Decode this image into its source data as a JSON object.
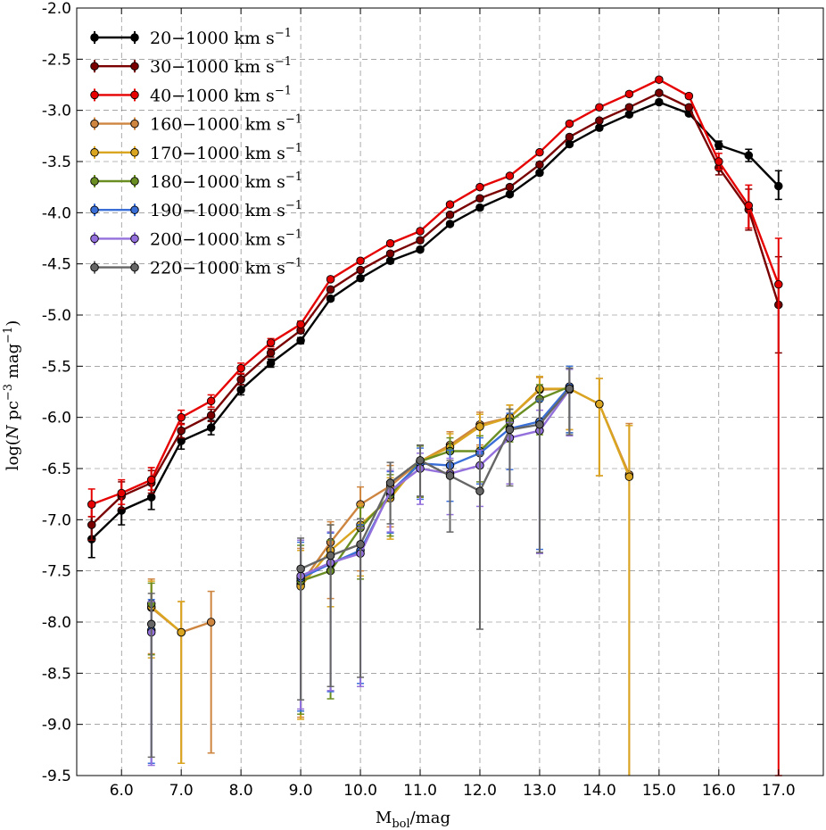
{
  "chart_data": {
    "type": "line",
    "title": "",
    "xlabel": {
      "main": "M",
      "sub": "bol",
      "rest": "/mag"
    },
    "ylabel": {
      "pre": "log(",
      "N": "N",
      "mid": " pc",
      "sup1": "−3",
      "mid2": " mag",
      "sup2": "−1",
      "post": ")"
    },
    "xlim": [
      5.25,
      17.75
    ],
    "ylim": [
      -9.5,
      -2.0
    ],
    "xticks": [
      6.0,
      7.0,
      8.0,
      9.0,
      10.0,
      11.0,
      12.0,
      13.0,
      14.0,
      15.0,
      16.0,
      17.0
    ],
    "yticks": [
      -2.0,
      -2.5,
      -3.0,
      -3.5,
      -4.0,
      -4.5,
      -5.0,
      -5.5,
      -6.0,
      -6.5,
      -7.0,
      -7.5,
      -8.0,
      -8.5,
      -9.0,
      -9.5
    ],
    "grid": true,
    "legend_position": "top-left",
    "legend_unit": {
      "base": " km s",
      "sup": "−1"
    },
    "series": [
      {
        "name": "20−1000",
        "color": "#000000",
        "points": [
          [
            5.5,
            -7.19,
            0.22,
            0.18
          ],
          [
            6.0,
            -6.91,
            0.16,
            0.14
          ],
          [
            6.5,
            -6.78,
            0.14,
            0.12
          ],
          [
            7.0,
            -6.23,
            0.08,
            0.08
          ],
          [
            7.5,
            -6.1,
            0.07,
            0.07
          ],
          [
            8.0,
            -5.73,
            0.05,
            0.05
          ],
          [
            8.5,
            -5.47,
            0.04,
            0.04
          ],
          [
            9.0,
            -5.25,
            0.03,
            0.03
          ],
          [
            9.5,
            -4.84,
            0.02,
            0.02
          ],
          [
            10.0,
            -4.64,
            0.02,
            0.02
          ],
          [
            10.5,
            -4.47,
            0.02,
            0.02
          ],
          [
            11.0,
            -4.36,
            0.02,
            0.02
          ],
          [
            11.5,
            -4.11,
            0.02,
            0.02
          ],
          [
            12.0,
            -3.95,
            0.02,
            0.02
          ],
          [
            12.5,
            -3.82,
            0.02,
            0.02
          ],
          [
            13.0,
            -3.61,
            0.02,
            0.02
          ],
          [
            13.5,
            -3.33,
            0.02,
            0.02
          ],
          [
            14.0,
            -3.17,
            0.02,
            0.02
          ],
          [
            14.5,
            -3.04,
            0.02,
            0.02
          ],
          [
            15.0,
            -2.92,
            0.02,
            0.02
          ],
          [
            15.5,
            -3.03,
            0.02,
            0.02
          ],
          [
            16.0,
            -3.34,
            0.04,
            0.04
          ],
          [
            16.5,
            -3.44,
            0.06,
            0.06
          ],
          [
            17.0,
            -3.74,
            0.15,
            0.13
          ]
        ]
      },
      {
        "name": "30−1000",
        "color": "#7a0000",
        "points": [
          [
            5.5,
            -7.05,
            0.18,
            0.15
          ],
          [
            6.0,
            -6.77,
            0.14,
            0.12
          ],
          [
            6.5,
            -6.64,
            0.12,
            0.1
          ],
          [
            7.0,
            -6.13,
            0.07,
            0.07
          ],
          [
            7.5,
            -5.98,
            0.06,
            0.06
          ],
          [
            8.0,
            -5.63,
            0.05,
            0.05
          ],
          [
            8.5,
            -5.37,
            0.04,
            0.04
          ],
          [
            9.0,
            -5.15,
            0.03,
            0.03
          ],
          [
            9.5,
            -4.75,
            0.02,
            0.02
          ],
          [
            10.0,
            -4.56,
            0.02,
            0.02
          ],
          [
            10.5,
            -4.4,
            0.02,
            0.02
          ],
          [
            11.0,
            -4.27,
            0.02,
            0.02
          ],
          [
            11.5,
            -4.02,
            0.02,
            0.02
          ],
          [
            12.0,
            -3.86,
            0.02,
            0.02
          ],
          [
            12.5,
            -3.75,
            0.02,
            0.02
          ],
          [
            13.0,
            -3.53,
            0.02,
            0.02
          ],
          [
            13.5,
            -3.26,
            0.02,
            0.02
          ],
          [
            14.0,
            -3.1,
            0.02,
            0.02
          ],
          [
            14.5,
            -2.97,
            0.02,
            0.02
          ],
          [
            15.0,
            -2.83,
            0.02,
            0.02
          ],
          [
            15.5,
            -2.97,
            0.02,
            0.02
          ],
          [
            16.0,
            -3.56,
            0.07,
            0.07
          ],
          [
            16.5,
            -3.97,
            0.2,
            0.2
          ],
          [
            17.0,
            -4.9,
            0.47,
            0.47
          ]
        ]
      },
      {
        "name": "40−1000",
        "color": "#e60000",
        "points": [
          [
            5.5,
            -6.85,
            0.15,
            0.12
          ],
          [
            6.0,
            -6.74,
            0.13,
            0.11
          ],
          [
            6.5,
            -6.61,
            0.12,
            0.1
          ],
          [
            7.0,
            -6.0,
            0.07,
            0.07
          ],
          [
            7.5,
            -5.84,
            0.06,
            0.06
          ],
          [
            8.0,
            -5.52,
            0.05,
            0.05
          ],
          [
            8.5,
            -5.27,
            0.04,
            0.04
          ],
          [
            9.0,
            -5.09,
            0.03,
            0.03
          ],
          [
            9.5,
            -4.65,
            0.02,
            0.02
          ],
          [
            10.0,
            -4.47,
            0.02,
            0.02
          ],
          [
            10.5,
            -4.3,
            0.02,
            0.02
          ],
          [
            11.0,
            -4.18,
            0.02,
            0.02
          ],
          [
            11.5,
            -3.92,
            0.02,
            0.02
          ],
          [
            12.0,
            -3.75,
            0.02,
            0.02
          ],
          [
            12.5,
            -3.64,
            0.02,
            0.02
          ],
          [
            13.0,
            -3.41,
            0.02,
            0.02
          ],
          [
            13.5,
            -3.13,
            0.02,
            0.02
          ],
          [
            14.0,
            -2.97,
            0.02,
            0.02
          ],
          [
            14.5,
            -2.84,
            0.02,
            0.02
          ],
          [
            15.0,
            -2.7,
            0.02,
            0.02
          ],
          [
            15.5,
            -2.86,
            0.02,
            0.02
          ],
          [
            16.0,
            -3.5,
            0.08,
            0.08
          ],
          [
            16.5,
            -3.93,
            0.2,
            0.22
          ],
          [
            17.0,
            -4.7,
            0.45,
            4.8
          ]
        ]
      },
      {
        "name": "160−1000",
        "color": "#cd853f",
        "points": [
          [
            6.5,
            -7.86,
            0.28,
            0.45
          ],
          [
            7.0,
            -8.1,
            0.3,
            1.28
          ],
          [
            7.5,
            -8.0,
            0.3,
            1.28
          ],
          null,
          [
            9.0,
            -7.63,
            0.35,
            1.3
          ],
          [
            9.5,
            -7.22,
            0.2,
            0.55
          ],
          [
            10.0,
            -6.85,
            0.17,
            0.65
          ],
          [
            10.5,
            -6.67,
            0.2,
            0.4
          ],
          [
            11.0,
            -6.43,
            0.15,
            0.35
          ],
          [
            11.5,
            -6.27,
            0.13,
            0.25
          ],
          [
            12.0,
            -6.07,
            0.12,
            0.2
          ],
          [
            12.5,
            -6.0,
            0.12,
            0.18
          ],
          [
            13.0,
            -5.73,
            0.12,
            0.3
          ],
          [
            13.5,
            -5.72,
            0.2,
            0.4
          ],
          [
            14.0,
            -5.87,
            0.25,
            0.7
          ],
          [
            14.5,
            -6.56,
            0.5,
            3.5
          ]
        ]
      },
      {
        "name": "170−1000",
        "color": "#daa520",
        "points": [
          [
            6.5,
            -7.85,
            0.25,
            0.5
          ],
          [
            7.0,
            -8.1,
            0.3,
            1.28
          ],
          null,
          [
            9.0,
            -7.65,
            0.35,
            1.3
          ],
          [
            9.5,
            -7.3,
            0.25,
            0.55
          ],
          [
            10.0,
            -7.05,
            0.2,
            0.5
          ],
          [
            10.5,
            -6.79,
            0.2,
            0.4
          ],
          [
            11.0,
            -6.43,
            0.15,
            0.35
          ],
          [
            11.5,
            -6.29,
            0.13,
            0.25
          ],
          [
            12.0,
            -6.09,
            0.12,
            0.2
          ],
          [
            12.5,
            -6.0,
            0.12,
            0.18
          ],
          [
            13.0,
            -5.72,
            0.12,
            0.3
          ],
          [
            13.5,
            -5.72,
            0.2,
            0.4
          ],
          [
            14.0,
            -5.87,
            0.25,
            0.7
          ],
          [
            14.5,
            -6.58,
            0.5,
            3.5
          ]
        ]
      },
      {
        "name": "180−1000",
        "color": "#6b8e23",
        "points": [
          [
            6.5,
            -7.82,
            0.2,
            0.5
          ],
          null,
          [
            9.0,
            -7.6,
            0.35,
            1.3
          ],
          [
            9.5,
            -7.5,
            0.3,
            1.25
          ],
          [
            10.0,
            -7.08,
            0.2,
            0.5
          ],
          [
            10.5,
            -6.76,
            0.2,
            0.4
          ],
          [
            11.0,
            -6.43,
            0.15,
            0.35
          ],
          [
            11.5,
            -6.33,
            0.13,
            0.25
          ],
          [
            12.0,
            -6.33,
            0.15,
            0.3
          ],
          [
            12.5,
            -6.04,
            0.12,
            0.2
          ],
          [
            13.0,
            -5.82,
            0.14,
            0.35
          ],
          [
            13.5,
            -5.7,
            0.2,
            0.45
          ]
        ]
      },
      {
        "name": "190−1000",
        "color": "#3a6fd8",
        "points": [
          [
            6.5,
            -8.08,
            0.3,
            1.3
          ],
          null,
          [
            9.0,
            -7.57,
            0.35,
            1.3
          ],
          [
            9.5,
            -7.43,
            0.3,
            1.25
          ],
          [
            10.0,
            -7.3,
            0.25,
            1.3
          ],
          [
            10.5,
            -6.73,
            0.2,
            0.4
          ],
          [
            11.0,
            -6.45,
            0.15,
            0.35
          ],
          [
            11.5,
            -6.47,
            0.15,
            0.35
          ],
          [
            12.0,
            -6.35,
            0.15,
            0.3
          ],
          [
            12.5,
            -6.11,
            0.15,
            0.4
          ],
          [
            13.0,
            -6.04,
            0.2,
            1.25
          ],
          [
            13.5,
            -5.7,
            0.2,
            0.45
          ]
        ]
      },
      {
        "name": "200−1000",
        "color": "#9370db",
        "points": [
          [
            6.5,
            -8.1,
            0.3,
            1.3
          ],
          null,
          [
            9.0,
            -7.55,
            0.35,
            1.3
          ],
          [
            9.5,
            -7.42,
            0.3,
            1.25
          ],
          [
            10.0,
            -7.33,
            0.25,
            1.3
          ],
          [
            10.5,
            -6.72,
            0.2,
            0.4
          ],
          [
            11.0,
            -6.5,
            0.15,
            0.35
          ],
          [
            11.5,
            -6.55,
            0.15,
            0.4
          ],
          [
            12.0,
            -6.47,
            0.15,
            0.4
          ],
          [
            12.5,
            -6.2,
            0.15,
            0.45
          ],
          [
            13.0,
            -6.13,
            0.2,
            1.2
          ],
          [
            13.5,
            -5.73,
            0.2,
            0.45
          ]
        ]
      },
      {
        "name": "220−1000",
        "color": "#666666",
        "points": [
          [
            6.5,
            -8.02,
            0.3,
            1.3
          ],
          null,
          [
            9.0,
            -7.48,
            0.3,
            1.28
          ],
          [
            9.5,
            -7.35,
            0.3,
            1.28
          ],
          [
            10.0,
            -7.24,
            0.25,
            1.3
          ],
          [
            10.5,
            -6.64,
            0.2,
            0.4
          ],
          [
            11.0,
            -6.42,
            0.15,
            0.35
          ],
          [
            11.5,
            -6.57,
            0.15,
            0.55
          ],
          [
            12.0,
            -6.72,
            0.35,
            1.35
          ],
          [
            12.5,
            -6.12,
            0.2,
            0.55
          ],
          [
            13.0,
            -6.07,
            0.25,
            1.25
          ],
          [
            13.5,
            -5.72,
            0.2,
            0.45
          ]
        ]
      }
    ]
  }
}
